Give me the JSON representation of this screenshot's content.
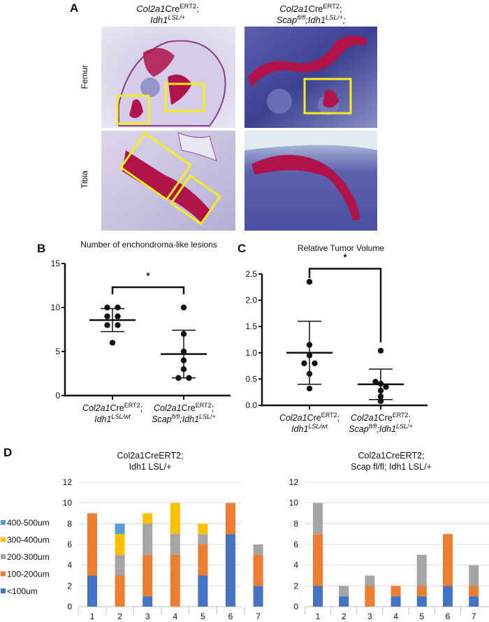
{
  "panel_a": {
    "letter": "A",
    "columns": [
      {
        "line1": [
          {
            "t": "Col2a1",
            "i": true
          },
          {
            "t": "Cre",
            "i": false
          },
          {
            "t": "ERT2",
            "sup": true
          },
          {
            "t": ";"
          }
        ],
        "line2": [
          {
            "t": "Idh1",
            "i": true
          },
          {
            "t": "LSL/+",
            "sup": true,
            "i": true
          }
        ]
      },
      {
        "line1": [
          {
            "t": "Col2a1",
            "i": true
          },
          {
            "t": "Cre",
            "i": false
          },
          {
            "t": "ERT2",
            "sup": true
          },
          {
            "t": ";"
          }
        ],
        "line2": [
          {
            "t": "Scap",
            "i": true
          },
          {
            "t": "fl/fl",
            "sup": true,
            "i": true
          },
          {
            "t": ";",
            "i": true
          },
          {
            "t": "Idh1",
            "i": true
          },
          {
            "t": "LSL/+",
            "sup": true,
            "i": true
          },
          {
            "t": ";",
            "i": true
          }
        ]
      }
    ],
    "rows": [
      "Femur",
      "Tibia"
    ],
    "colors": {
      "stain_bg": "#b9b3d6",
      "bone": "#3a3f8f",
      "tumor": "#b0124a",
      "box": "#f5ee1c"
    }
  },
  "chart_data": [
    {
      "id": "B",
      "letter": "B",
      "type": "scatter",
      "title": "Number of enchondroma-like lesions",
      "ylim": [
        0,
        15
      ],
      "yticks": [
        0,
        5,
        10,
        15
      ],
      "categories": [
        {
          "line1": [
            {
              "t": "Col2a1",
              "i": true
            },
            {
              "t": "Cre"
            },
            {
              "t": "ERT2",
              "sup": true
            },
            {
              "t": ";"
            }
          ],
          "line2": [
            {
              "t": "Idh1",
              "i": true
            },
            {
              "t": "LSL/wt",
              "sup": true,
              "i": true
            }
          ]
        },
        {
          "line1": [
            {
              "t": "Col2a1",
              "i": true
            },
            {
              "t": "Cre"
            },
            {
              "t": "ERT2",
              "sup": true
            },
            {
              "t": ";"
            }
          ],
          "line2": [
            {
              "t": "Scap",
              "i": true
            },
            {
              "t": "fl/fl",
              "sup": true,
              "i": true
            },
            {
              "t": ";",
              "i": true
            },
            {
              "t": "Idh1",
              "i": true
            },
            {
              "t": "LSL/+",
              "sup": true,
              "i": true
            }
          ]
        }
      ],
      "series": [
        {
          "values": [
            10,
            10,
            9,
            9,
            8,
            8,
            6
          ],
          "mean": 8.57,
          "sd_low": 7.26,
          "sd_high": 9.88
        },
        {
          "values": [
            10,
            7,
            5,
            4,
            3,
            2,
            2
          ],
          "mean": 4.71,
          "sd_low": 2.0,
          "sd_high": 7.42
        }
      ],
      "significance": {
        "label": "*",
        "bracket_y": 12.3,
        "left_end": 11.5,
        "right_end": 11.5
      }
    },
    {
      "id": "C",
      "letter": "C",
      "type": "scatter",
      "title": "Relative Tumor Volume",
      "ylim": [
        0,
        2.5
      ],
      "yticks": [
        "0.0",
        "0.5",
        "1.0",
        "1.5",
        "2.0",
        "2.5"
      ],
      "categories": [
        {
          "line1": [
            {
              "t": "Col2a1",
              "i": true
            },
            {
              "t": "Cre"
            },
            {
              "t": "ERT2",
              "sup": true
            },
            {
              "t": ";"
            }
          ],
          "line2": [
            {
              "t": "Idh1",
              "i": true
            },
            {
              "t": "LSL/wt",
              "sup": true,
              "i": true
            }
          ]
        },
        {
          "line1": [
            {
              "t": "Col2a1",
              "i": true
            },
            {
              "t": "Cre"
            },
            {
              "t": "ERT2",
              "sup": true
            },
            {
              "t": ";"
            }
          ],
          "line2": [
            {
              "t": "Scap",
              "i": true
            },
            {
              "t": "fl/fl",
              "sup": true,
              "i": true
            },
            {
              "t": ";",
              "i": true
            },
            {
              "t": "Idh1",
              "i": true
            },
            {
              "t": "LSL/+",
              "sup": true,
              "i": true
            }
          ]
        }
      ],
      "series": [
        {
          "values": [
            2.35,
            1.15,
            0.95,
            0.8,
            0.8,
            0.6,
            0.32
          ],
          "mean": 1.0,
          "sd_low": 0.4,
          "sd_high": 1.6
        },
        {
          "values": [
            1.04,
            0.45,
            0.41,
            0.35,
            0.28,
            0.17,
            0.08
          ],
          "mean": 0.4,
          "sd_low": 0.11,
          "sd_high": 0.69
        }
      ],
      "significance": {
        "label": "*",
        "bracket_y": 2.6,
        "left_end": 2.42,
        "right_end": 1.2
      }
    },
    {
      "id": "D-left",
      "letter": "D",
      "type": "bar",
      "stacked": true,
      "title": [
        "Col2a1CreERT2;",
        "Idh1 LSL/+"
      ],
      "ylim": [
        0,
        12
      ],
      "yticks": [
        0,
        2,
        4,
        6,
        8,
        10,
        12
      ],
      "grid": true,
      "legend": "left",
      "categories": [
        "1",
        "2",
        "3",
        "4",
        "5",
        "6",
        "7"
      ],
      "series": [
        {
          "name": "<100um",
          "color": "#4472C4",
          "values": [
            3,
            0,
            1,
            0,
            3,
            7,
            2
          ]
        },
        {
          "name": "100-200um",
          "color": "#ED7D31",
          "values": [
            6,
            3,
            4,
            5,
            3,
            3,
            3
          ]
        },
        {
          "name": "200-300um",
          "color": "#A5A5A5",
          "values": [
            0,
            2,
            3,
            2,
            1,
            0,
            1
          ]
        },
        {
          "name": "300-400um",
          "color": "#FFC000",
          "values": [
            0,
            2,
            1,
            3,
            1,
            0,
            0
          ]
        },
        {
          "name": "400-500um",
          "color": "#5B9BD5",
          "values": [
            0,
            1,
            0,
            0,
            0,
            0,
            0
          ]
        }
      ]
    },
    {
      "id": "D-right",
      "type": "bar",
      "stacked": true,
      "title": [
        "Col2a1CreERT2;",
        "Scap fl/fl; Idh1 LSL/+"
      ],
      "ylim": [
        0,
        12
      ],
      "yticks": [
        0,
        2,
        4,
        6,
        8,
        10,
        12
      ],
      "grid": true,
      "categories": [
        "1",
        "2",
        "3",
        "4",
        "5",
        "6",
        "7"
      ],
      "series": [
        {
          "name": "<100um",
          "color": "#4472C4",
          "values": [
            2,
            1,
            0,
            1,
            1,
            2,
            1
          ]
        },
        {
          "name": "100-200um",
          "color": "#ED7D31",
          "values": [
            5,
            0,
            2,
            1,
            1,
            5,
            1
          ]
        },
        {
          "name": "200-300um",
          "color": "#A5A5A5",
          "values": [
            3,
            1,
            1,
            0,
            3,
            0,
            2
          ]
        },
        {
          "name": "300-400um",
          "color": "#FFC000",
          "values": [
            0,
            0,
            0,
            0,
            0,
            0,
            0
          ]
        },
        {
          "name": "400-500um",
          "color": "#5B9BD5",
          "values": [
            0,
            0,
            0,
            0,
            0,
            0,
            0
          ]
        }
      ]
    }
  ]
}
